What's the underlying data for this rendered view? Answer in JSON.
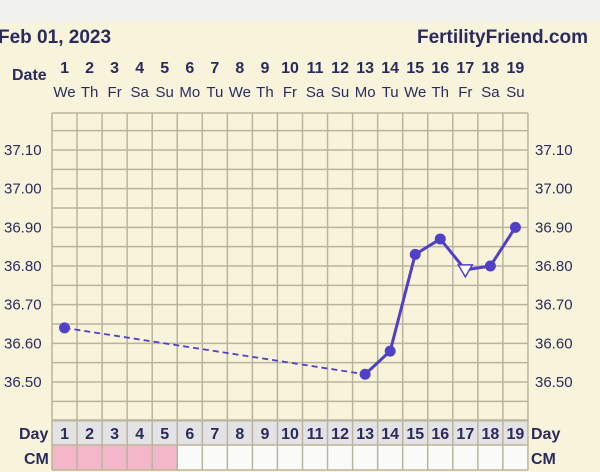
{
  "chart_data": {
    "type": "line",
    "title": "Feb 01, 2023",
    "brand": "FertilityFriend.com",
    "date_label": "Date",
    "day_label": "Day",
    "cm_label": "CM",
    "dates": [
      "1",
      "2",
      "3",
      "4",
      "5",
      "6",
      "7",
      "8",
      "9",
      "10",
      "11",
      "12",
      "13",
      "14",
      "15",
      "16",
      "17",
      "18",
      "19"
    ],
    "weekdays": [
      "We",
      "Th",
      "Fr",
      "Sa",
      "Su",
      "Mo",
      "Tu",
      "We",
      "Th",
      "Fr",
      "Sa",
      "Su",
      "Mo",
      "Tu",
      "We",
      "Th",
      "Fr",
      "Sa",
      "Su"
    ],
    "days": [
      "1",
      "2",
      "3",
      "4",
      "5",
      "6",
      "7",
      "8",
      "9",
      "10",
      "11",
      "12",
      "13",
      "14",
      "15",
      "16",
      "17",
      "18",
      "19"
    ],
    "y_ticks": [
      "37.10",
      "37.00",
      "36.90",
      "36.80",
      "36.70",
      "36.60",
      "36.50"
    ],
    "ylim": [
      36.4,
      37.2
    ],
    "grid": true,
    "series": [
      {
        "points": [
          {
            "day": 1,
            "temp": 36.64
          },
          {
            "day": 13,
            "temp": 36.52
          },
          {
            "day": 14,
            "temp": 36.58
          },
          {
            "day": 15,
            "temp": 36.83
          },
          {
            "day": 16,
            "temp": 36.87
          },
          {
            "day": 17,
            "temp": 36.79,
            "marker": "open-triangle"
          },
          {
            "day": 18,
            "temp": 36.8
          },
          {
            "day": 19,
            "temp": 36.9
          }
        ],
        "dashed_segments": [
          [
            1,
            13
          ]
        ]
      }
    ],
    "cm_pink_days": [
      1,
      2,
      3,
      4,
      5
    ],
    "colors": {
      "background": "#f8f4dc",
      "line": "#5040c8",
      "grid": "#b9b59c",
      "text": "#2b2a5c",
      "cm_pink": "#f4b6c9",
      "day_row": "#e3e3e6"
    }
  }
}
